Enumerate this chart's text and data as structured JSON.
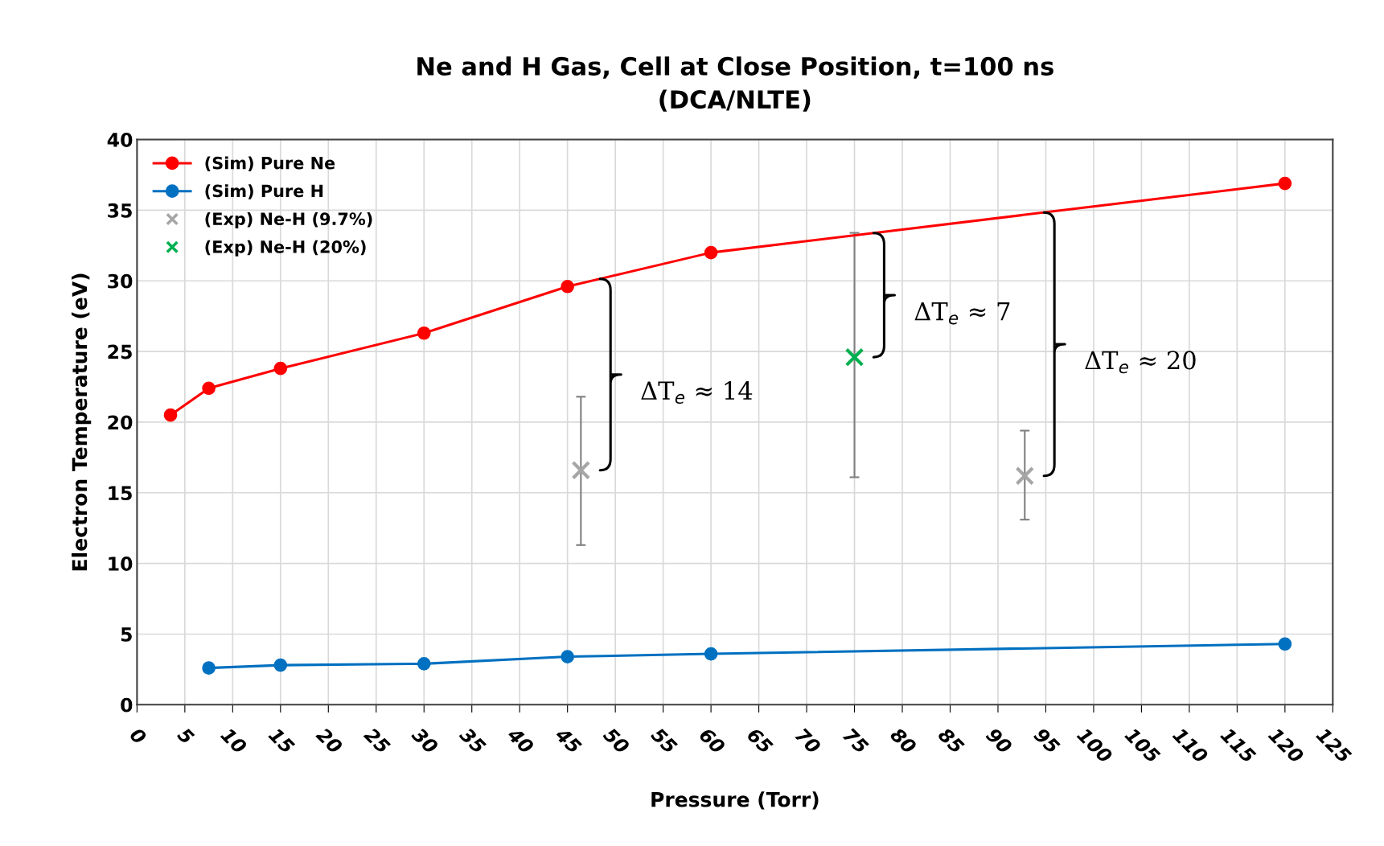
{
  "chart_data": {
    "type": "line",
    "title": "Ne and H Gas, Cell at Close Position, t=100 ns\n(DCA/NLTE)",
    "xlabel": "Pressure (Torr)",
    "ylabel": "Electron Temperature (eV)",
    "xlim": [
      0,
      125
    ],
    "xticks": [
      0,
      5,
      10,
      15,
      20,
      25,
      30,
      35,
      40,
      45,
      50,
      55,
      60,
      65,
      70,
      75,
      80,
      85,
      90,
      95,
      100,
      105,
      110,
      115,
      120,
      125
    ],
    "ylim": [
      0,
      40
    ],
    "yticks": [
      0,
      5,
      10,
      15,
      20,
      25,
      30,
      35,
      40
    ],
    "grid": true,
    "legend": "top left",
    "series": [
      {
        "name": "(Sim) Pure Ne",
        "marker": "circle",
        "color": "#ff0000",
        "x": [
          3.5,
          7.5,
          15,
          30,
          45,
          60,
          120
        ],
        "values": [
          20.5,
          22.4,
          23.8,
          26.3,
          29.6,
          32.0,
          36.9
        ]
      },
      {
        "name": "(Sim) Pure H",
        "marker": "circle",
        "color": "#0070c0",
        "x": [
          7.5,
          15,
          30,
          45,
          60,
          120
        ],
        "values": [
          2.6,
          2.8,
          2.9,
          3.4,
          3.6,
          4.3
        ]
      },
      {
        "name": "(Exp) Ne-H (9.7%)",
        "type": "scatter",
        "marker": "cross",
        "color": "#a6a6a6",
        "x": [
          46.4,
          92.8
        ],
        "values": [
          16.6,
          16.2
        ],
        "errors": [
          [
            11.3,
            21.8
          ],
          [
            13.1,
            19.4
          ]
        ]
      },
      {
        "name": "(Exp) Ne-H (20%)",
        "type": "scatter",
        "marker": "cross",
        "color": "#00b050",
        "x": [
          75
        ],
        "values": [
          24.6
        ],
        "errors": [
          [
            16.1,
            33.4
          ]
        ]
      }
    ],
    "annotations": [
      "ΔT$_{e}$ ≈ 14",
      "ΔT$_{e}$ ≈ 7",
      "ΔT$_{e}$ ≈ 20"
    ]
  }
}
